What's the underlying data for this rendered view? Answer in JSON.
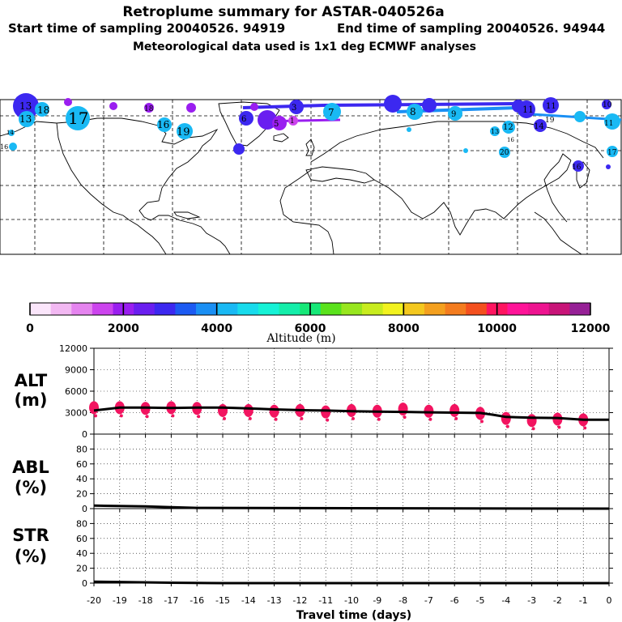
{
  "header": {
    "title": "Retroplume summary for ASTAR-040526a",
    "start_label": "Start time of sampling 20040526. 94919",
    "end_label": "End time of sampling 20040526. 94944",
    "met_label": "Meteorological data used is 1x1 deg ECMWF analyses"
  },
  "colorbar": {
    "title": "Altitude (m)",
    "tick_labels": [
      "0",
      "2000",
      "4000",
      "6000",
      "8000",
      "10000",
      "12000"
    ],
    "colors": [
      "#fbe6fb",
      "#f2b8f2",
      "#e584ef",
      "#cc44ee",
      "#9a1ef0",
      "#6a1ef0",
      "#3c28f0",
      "#1c5af2",
      "#1a8ff4",
      "#19b9f4",
      "#18dbec",
      "#16f2d6",
      "#14eeaa",
      "#16e878",
      "#5ae21c",
      "#98e61e",
      "#c8ec1e",
      "#f2f21e",
      "#f4c81e",
      "#f4a01e",
      "#f47c1e",
      "#f4501e",
      "#ff1460",
      "#ff1498",
      "#ee1490",
      "#c81478",
      "#962096"
    ]
  },
  "map": {
    "labels": [
      "13",
      "18",
      "13",
      "17",
      "16",
      "14",
      "16",
      "18",
      "19",
      "6",
      "3",
      "5",
      "1",
      "7",
      "8",
      "9",
      "11",
      "13",
      "19",
      "16",
      "20",
      "10",
      "11",
      "12",
      "14",
      "11",
      "17",
      "16"
    ]
  },
  "panels": {
    "alt": {
      "line1": "ALT",
      "line2": "(m)"
    },
    "abl": {
      "line1": "ABL",
      "line2": "(%)"
    },
    "str": {
      "line1": "STR",
      "line2": "(%)"
    }
  },
  "x_axis_title": "Travel time (days)",
  "chart_data": [
    {
      "type": "line",
      "name": "ALT",
      "ylabel": "ALT (m)",
      "ylim": [
        0,
        12000
      ],
      "y_ticks": [
        0,
        3000,
        6000,
        9000,
        12000
      ],
      "xlim": [
        -20,
        0
      ],
      "x_ticks": [
        -20,
        -19,
        -18,
        -17,
        -16,
        -15,
        -14,
        -13,
        -12,
        -11,
        -10,
        -9,
        -8,
        -7,
        -6,
        -5,
        -4,
        -3,
        -2,
        -1,
        0
      ],
      "x_tick_labels": [
        "-20",
        "-19",
        "-18",
        "-17",
        "-16",
        "-15",
        "-14",
        "-13",
        "-12",
        "-11",
        "-10",
        "-9",
        "-8",
        "-7",
        "-6",
        "-5",
        "-4",
        "-3",
        "-2",
        "-1",
        "0"
      ],
      "line": {
        "x": [
          -20,
          -19,
          -18,
          -17,
          -16,
          -15,
          -14,
          -13,
          -12,
          -11,
          -10,
          -9,
          -8,
          -7,
          -6,
          -5,
          -4.5,
          -4,
          -3,
          -2,
          -1,
          0
        ],
        "y": [
          3300,
          3700,
          3700,
          3650,
          3700,
          3700,
          3600,
          3450,
          3350,
          3300,
          3200,
          3150,
          3100,
          3050,
          3000,
          2950,
          2700,
          2400,
          2300,
          2250,
          2000,
          2000
        ]
      },
      "clusters": {
        "x": [
          -20,
          -19,
          -18,
          -17,
          -16,
          -15,
          -14,
          -13,
          -12,
          -11,
          -10,
          -9,
          -8,
          -7,
          -6,
          -5,
          -4,
          -3,
          -2,
          -1
        ],
        "y": [
          3700,
          3700,
          3600,
          3700,
          3600,
          3300,
          3300,
          3200,
          3300,
          3100,
          3300,
          3200,
          3500,
          3200,
          3300,
          2900,
          2200,
          1900,
          2100,
          2000
        ]
      }
    },
    {
      "type": "line",
      "name": "ABL",
      "ylabel": "ABL (%)",
      "ylim": [
        0,
        100
      ],
      "y_ticks": [
        0,
        20,
        40,
        60,
        80
      ],
      "xlim": [
        -20,
        0
      ],
      "x": [
        -20,
        -18,
        -17,
        -16,
        -10,
        0
      ],
      "y": [
        4,
        3,
        2,
        1,
        0.5,
        0
      ]
    },
    {
      "type": "line",
      "name": "STR",
      "ylabel": "STR (%)",
      "ylim": [
        0,
        100
      ],
      "y_ticks": [
        0,
        20,
        40,
        60,
        80
      ],
      "xlim": [
        -20,
        0
      ],
      "x": [
        -20,
        -19,
        -17,
        -15,
        0
      ],
      "y": [
        2,
        1.5,
        0.5,
        0,
        0
      ]
    }
  ]
}
